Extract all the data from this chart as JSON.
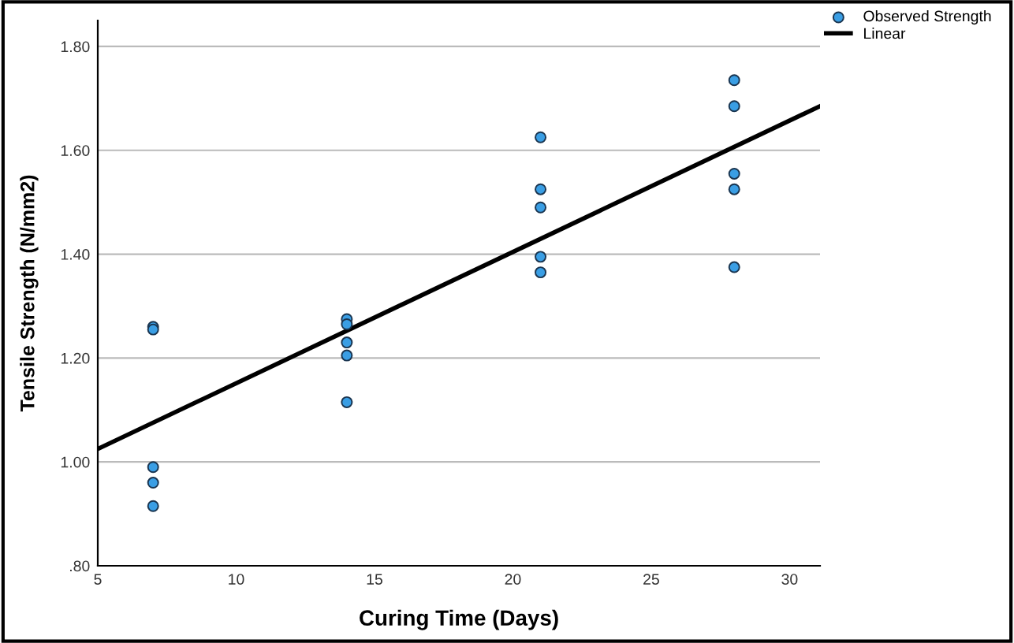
{
  "chart_data": {
    "type": "scatter",
    "xlabel": "Curing Time (Days)",
    "ylabel": "Tensile Strength (N/mm2)",
    "series": [
      {
        "name": "Observed Strength",
        "marker": "circle",
        "color": "#3a9ee4",
        "x": [
          7,
          7,
          7,
          7,
          7,
          14,
          14,
          14,
          14,
          14,
          21,
          21,
          21,
          21,
          21,
          28,
          28,
          28,
          28,
          28
        ],
        "values": [
          1.26,
          1.255,
          0.99,
          0.96,
          0.915,
          1.275,
          1.265,
          1.23,
          1.205,
          1.115,
          1.625,
          1.525,
          1.49,
          1.395,
          1.365,
          1.735,
          1.685,
          1.555,
          1.525,
          1.375
        ]
      },
      {
        "name": "Linear",
        "type": "line",
        "color": "#000000",
        "x": [
          5,
          31.1
        ],
        "values": [
          1.025,
          1.685
        ]
      }
    ],
    "xlim": [
      5,
      31.1
    ],
    "xticks": [
      5,
      10,
      15,
      20,
      25,
      30
    ],
    "ylim": [
      0.8,
      1.85
    ],
    "yticks": [
      {
        "value": 0.8,
        "label": ".80"
      },
      {
        "value": 1.0,
        "label": "1.00"
      },
      {
        "value": 1.2,
        "label": "1.20"
      },
      {
        "value": 1.4,
        "label": "1.40"
      },
      {
        "value": 1.6,
        "label": "1.60"
      },
      {
        "value": 1.8,
        "label": "1.80"
      }
    ],
    "grid": "y",
    "legend": "top right"
  }
}
